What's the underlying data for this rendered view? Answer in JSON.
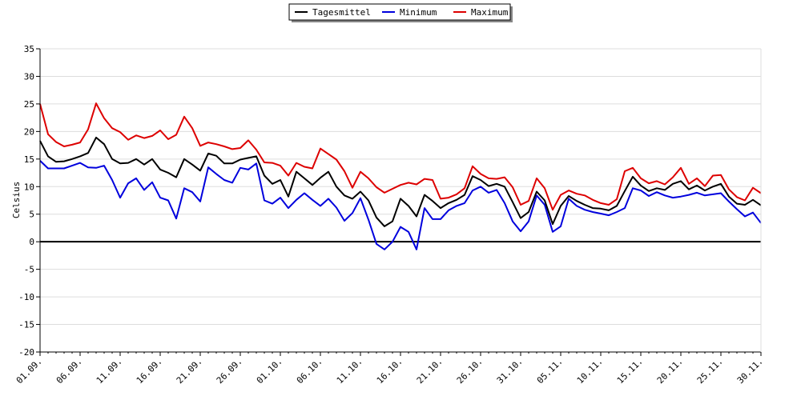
{
  "chart_data": {
    "type": "line",
    "title": "",
    "xlabel": "",
    "ylabel": "Celsius",
    "ylim": [
      -20,
      35
    ],
    "yticks": [
      35,
      30,
      25,
      20,
      15,
      10,
      5,
      0,
      -5,
      -10,
      -15,
      -20
    ],
    "xlim": [
      0,
      90
    ],
    "xticks": [
      {
        "label": "01.09.",
        "x": 0
      },
      {
        "label": "06.09.",
        "x": 5
      },
      {
        "label": "11.09.",
        "x": 10
      },
      {
        "label": "16.09.",
        "x": 15
      },
      {
        "label": "21.09.",
        "x": 20
      },
      {
        "label": "26.09.",
        "x": 25
      },
      {
        "label": "01.10.",
        "x": 30
      },
      {
        "label": "06.10.",
        "x": 35
      },
      {
        "label": "11.10.",
        "x": 40
      },
      {
        "label": "16.10.",
        "x": 45
      },
      {
        "label": "21.10.",
        "x": 50
      },
      {
        "label": "26.10.",
        "x": 55
      },
      {
        "label": "31.10.",
        "x": 60
      },
      {
        "label": "05.11.",
        "x": 65
      },
      {
        "label": "10.11.",
        "x": 70
      },
      {
        "label": "15.11.",
        "x": 75
      },
      {
        "label": "20.11.",
        "x": 80
      },
      {
        "label": "25.11.",
        "x": 85
      },
      {
        "label": "30.11.",
        "x": 90
      }
    ],
    "grid": true,
    "legend_position": "top-center",
    "series": [
      {
        "name": "Tagesmittel",
        "color": "#000000",
        "values": [
          18.3,
          15.5,
          14.5,
          14.6,
          15.0,
          15.5,
          16.1,
          18.9,
          17.7,
          15.0,
          14.2,
          14.3,
          15.0,
          14.0,
          15.0,
          13.1,
          12.5,
          11.7,
          15.0,
          14.0,
          12.9,
          16.0,
          15.6,
          14.2,
          14.2,
          14.9,
          15.2,
          15.5,
          12.0,
          10.5,
          11.2,
          8.2,
          12.7,
          11.5,
          10.3,
          11.6,
          12.7,
          10.0,
          8.4,
          7.8,
          9.1,
          7.5,
          4.4,
          2.8,
          3.7,
          7.8,
          6.5,
          4.6,
          8.5,
          7.4,
          6.1,
          7.0,
          7.6,
          8.5,
          11.9,
          11.2,
          10.1,
          10.5,
          10.0,
          7.2,
          4.3,
          5.4,
          9.1,
          7.5,
          3.2,
          6.5,
          8.3,
          7.4,
          6.7,
          6.1,
          6.0,
          5.7,
          6.5,
          9.2,
          11.8,
          10.2,
          9.2,
          9.7,
          9.4,
          10.5,
          11.0,
          9.5,
          10.2,
          9.3,
          10.0,
          10.5,
          8.2,
          6.9,
          6.7,
          7.6,
          6.6
        ]
      },
      {
        "name": "Minimum",
        "color": "#0000dd",
        "values": [
          14.7,
          13.3,
          13.3,
          13.3,
          13.8,
          14.3,
          13.5,
          13.4,
          13.8,
          11.2,
          8.0,
          10.6,
          11.5,
          9.4,
          10.8,
          8.0,
          7.5,
          4.2,
          9.7,
          9.0,
          7.3,
          13.5,
          12.3,
          11.2,
          10.7,
          13.4,
          13.1,
          14.2,
          7.5,
          6.9,
          8.0,
          6.1,
          7.6,
          8.8,
          7.6,
          6.5,
          7.8,
          6.2,
          3.8,
          5.2,
          7.9,
          4.0,
          -0.4,
          -1.4,
          0.0,
          2.7,
          1.8,
          -1.4,
          6.1,
          4.1,
          4.1,
          5.7,
          6.5,
          7.0,
          9.3,
          10.0,
          8.9,
          9.4,
          7.0,
          3.7,
          1.9,
          3.7,
          8.4,
          6.7,
          1.8,
          2.8,
          7.8,
          6.5,
          5.8,
          5.4,
          5.1,
          4.8,
          5.4,
          6.1,
          9.7,
          9.3,
          8.3,
          9.0,
          8.4,
          8.0,
          8.2,
          8.5,
          8.9,
          8.4,
          8.6,
          8.8,
          7.3,
          5.9,
          4.6,
          5.3,
          3.4
        ]
      },
      {
        "name": "Maximum",
        "color": "#dd0000",
        "values": [
          25.0,
          19.5,
          18.1,
          17.3,
          17.6,
          18.0,
          20.4,
          25.1,
          22.4,
          20.6,
          19.9,
          18.5,
          19.3,
          18.8,
          19.2,
          20.2,
          18.6,
          19.4,
          22.7,
          20.6,
          17.4,
          18.0,
          17.7,
          17.3,
          16.8,
          17.0,
          18.4,
          16.7,
          14.4,
          14.3,
          13.8,
          12.0,
          14.3,
          13.6,
          13.3,
          16.9,
          15.9,
          14.9,
          12.8,
          9.8,
          12.7,
          11.5,
          9.9,
          8.9,
          9.6,
          10.3,
          10.7,
          10.4,
          11.4,
          11.2,
          7.8,
          8.0,
          8.6,
          9.7,
          13.7,
          12.3,
          11.5,
          11.4,
          11.7,
          9.9,
          6.7,
          7.4,
          11.5,
          9.7,
          5.8,
          8.5,
          9.3,
          8.7,
          8.4,
          7.6,
          7.0,
          6.7,
          7.7,
          12.8,
          13.4,
          11.5,
          10.6,
          11.0,
          10.4,
          11.7,
          13.4,
          10.5,
          11.5,
          10.1,
          12.0,
          12.1,
          9.5,
          8.1,
          7.5,
          9.8,
          8.8
        ]
      }
    ]
  }
}
